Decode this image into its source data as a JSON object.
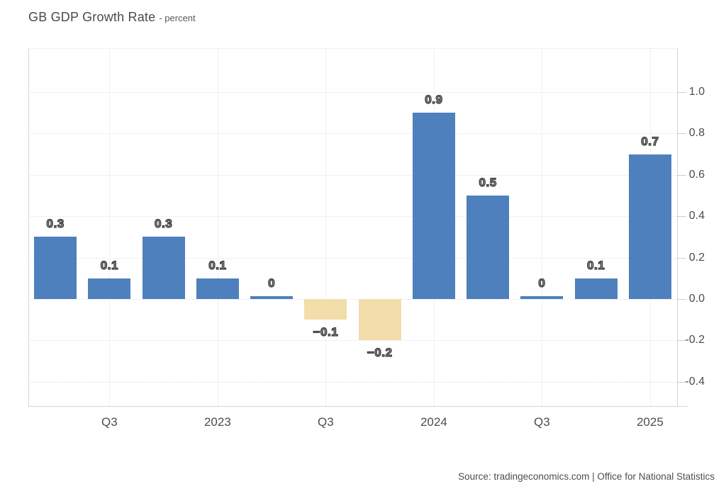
{
  "header": {
    "title": "GB GDP Growth Rate",
    "subtitle": "- percent"
  },
  "footer": {
    "source": "Source: tradingeconomics.com | Office for National Statistics"
  },
  "colors": {
    "positive_bar": "#4d80bd",
    "negative_bar": "#f2ddab",
    "gridline": "#e3e3e3",
    "axis_line": "#d5d5d5",
    "axis_text": "#4d4d4d",
    "title_text": "#4a4a4a",
    "background": "#ffffff"
  },
  "chart_data": {
    "type": "bar",
    "title": "GB GDP Growth Rate",
    "ylabel": "percent",
    "values": [
      0.3,
      0.1,
      0.3,
      0.1,
      0,
      -0.1,
      -0.2,
      0.9,
      0.5,
      0,
      0.1,
      0.7
    ],
    "bar_labels": [
      "0.3",
      "0.1",
      "0.3",
      "0.1",
      "0",
      "−0.1",
      "−0.2",
      "0.9",
      "0.5",
      "0",
      "0.1",
      "0.7"
    ],
    "x_tick_labels": [
      "Q3",
      "2023",
      "Q3",
      "2024",
      "Q3",
      "2025"
    ],
    "x_tick_bar_indices": [
      1,
      3,
      5,
      7,
      9,
      11
    ],
    "y_tick_labels": [
      "1.0",
      "0.8",
      "0.6",
      "0.4",
      "0.2",
      "0.0",
      "-0.2",
      "-0.4"
    ],
    "y_tick_values": [
      1.0,
      0.8,
      0.6,
      0.4,
      0.2,
      0.0,
      -0.2,
      -0.4
    ],
    "ylim": [
      -0.52,
      1.21
    ],
    "grid": "dotted",
    "legend": "none",
    "y_axis_side": "right"
  }
}
